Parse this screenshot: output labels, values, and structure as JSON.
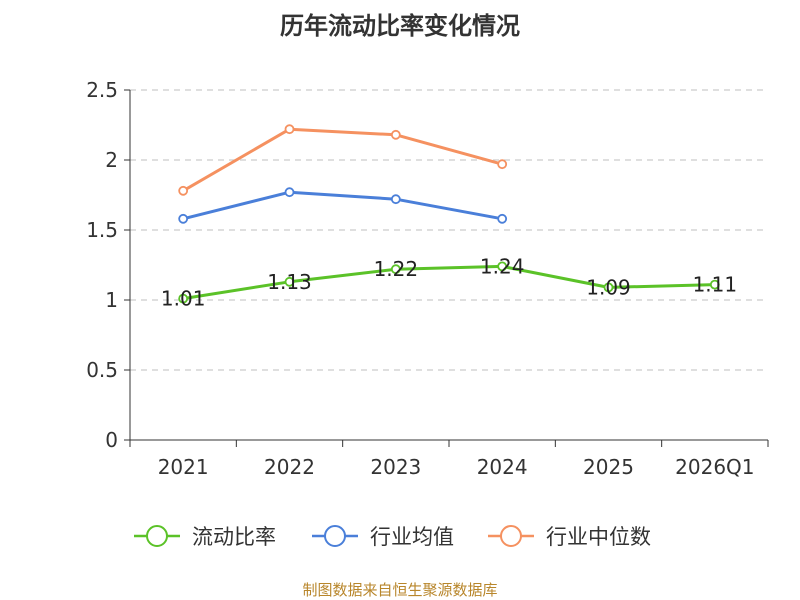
{
  "title": "历年流动比率变化情况",
  "source": "制图数据来自恒生聚源数据库",
  "chart_data": {
    "type": "line",
    "title": "历年流动比率变化情况",
    "categories": [
      "2021",
      "2022",
      "2023",
      "2024",
      "2025",
      "2026Q1"
    ],
    "ylim": [
      0,
      2.5
    ],
    "yticks": [
      0,
      0.5,
      1,
      1.5,
      2,
      2.5
    ],
    "ytick_labels": [
      "0",
      "0.5",
      "1",
      "1.5",
      "2",
      "2.5"
    ],
    "grid": true,
    "legend_position": "bottom",
    "series": [
      {
        "name": "流动比率",
        "color": "#5bc228",
        "values": [
          1.01,
          1.13,
          1.22,
          1.24,
          1.09,
          1.11
        ],
        "labels": [
          "1.01",
          "1.13",
          "1.22",
          "1.24",
          "1.09",
          "1.11"
        ]
      },
      {
        "name": "行业均值",
        "color": "#4a7fd9",
        "values": [
          1.58,
          1.77,
          1.72,
          1.58,
          null,
          null
        ]
      },
      {
        "name": "行业中位数",
        "color": "#f59160",
        "values": [
          1.78,
          2.22,
          2.18,
          1.97,
          null,
          null
        ]
      }
    ]
  }
}
